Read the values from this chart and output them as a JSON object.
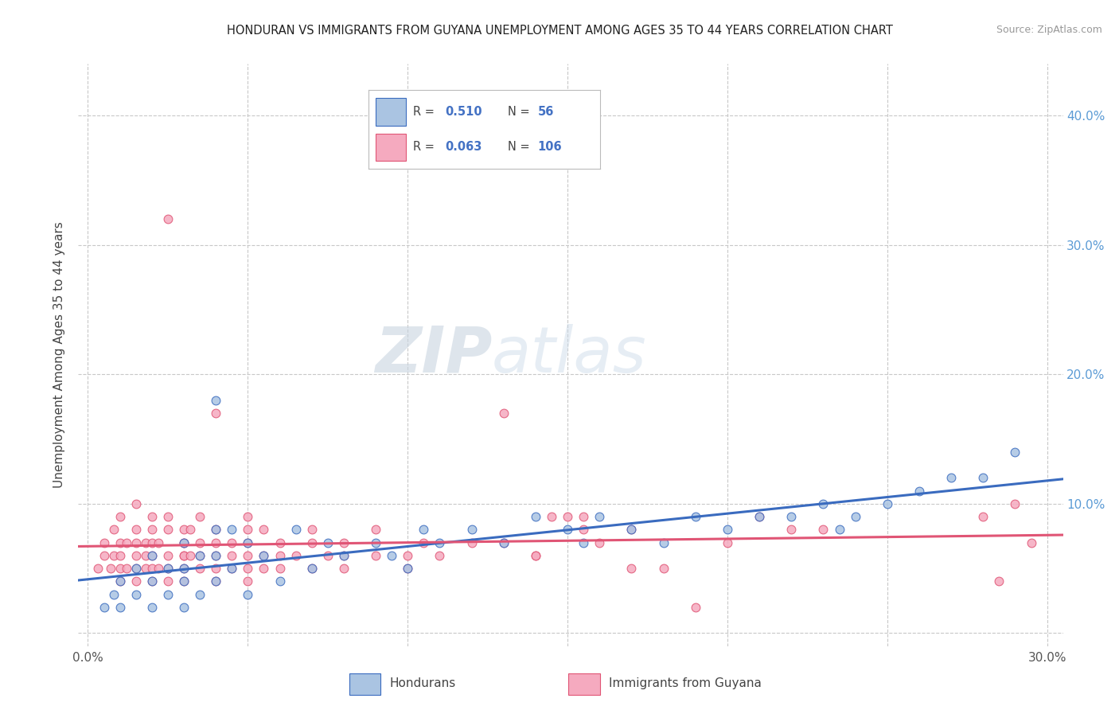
{
  "title": "HONDURAN VS IMMIGRANTS FROM GUYANA UNEMPLOYMENT AMONG AGES 35 TO 44 YEARS CORRELATION CHART",
  "source": "Source: ZipAtlas.com",
  "ylabel": "Unemployment Among Ages 35 to 44 years",
  "y_ticks_right": [
    0.0,
    0.1,
    0.2,
    0.3,
    0.4
  ],
  "y_tick_labels_right": [
    "",
    "10.0%",
    "20.0%",
    "30.0%",
    "40.0%"
  ],
  "xlim": [
    -0.003,
    0.305
  ],
  "ylim": [
    -0.01,
    0.44
  ],
  "blue_color": "#aac4e2",
  "pink_color": "#f5aabf",
  "blue_line_color": "#3a6bbf",
  "pink_line_color": "#e05575",
  "legend_R_blue": "0.510",
  "legend_N_blue": "56",
  "legend_R_pink": "0.063",
  "legend_N_pink": "106",
  "blue_scatter_x": [
    0.005,
    0.008,
    0.01,
    0.01,
    0.015,
    0.015,
    0.02,
    0.02,
    0.02,
    0.025,
    0.025,
    0.03,
    0.03,
    0.03,
    0.03,
    0.035,
    0.035,
    0.04,
    0.04,
    0.04,
    0.04,
    0.045,
    0.045,
    0.05,
    0.05,
    0.055,
    0.06,
    0.065,
    0.07,
    0.075,
    0.08,
    0.09,
    0.095,
    0.1,
    0.105,
    0.11,
    0.12,
    0.13,
    0.14,
    0.15,
    0.155,
    0.16,
    0.17,
    0.18,
    0.19,
    0.2,
    0.21,
    0.22,
    0.23,
    0.235,
    0.24,
    0.25,
    0.26,
    0.27,
    0.28,
    0.29
  ],
  "blue_scatter_y": [
    0.02,
    0.03,
    0.02,
    0.04,
    0.03,
    0.05,
    0.02,
    0.04,
    0.06,
    0.03,
    0.05,
    0.02,
    0.04,
    0.05,
    0.07,
    0.03,
    0.06,
    0.04,
    0.06,
    0.08,
    0.18,
    0.05,
    0.08,
    0.03,
    0.07,
    0.06,
    0.04,
    0.08,
    0.05,
    0.07,
    0.06,
    0.07,
    0.06,
    0.05,
    0.08,
    0.07,
    0.08,
    0.07,
    0.09,
    0.08,
    0.07,
    0.09,
    0.08,
    0.07,
    0.09,
    0.08,
    0.09,
    0.09,
    0.1,
    0.08,
    0.09,
    0.1,
    0.11,
    0.12,
    0.12,
    0.14
  ],
  "pink_scatter_x": [
    0.003,
    0.005,
    0.005,
    0.007,
    0.008,
    0.008,
    0.01,
    0.01,
    0.01,
    0.01,
    0.01,
    0.012,
    0.012,
    0.015,
    0.015,
    0.015,
    0.015,
    0.015,
    0.015,
    0.018,
    0.018,
    0.018,
    0.02,
    0.02,
    0.02,
    0.02,
    0.02,
    0.02,
    0.022,
    0.022,
    0.025,
    0.025,
    0.025,
    0.025,
    0.025,
    0.03,
    0.03,
    0.03,
    0.03,
    0.03,
    0.03,
    0.03,
    0.032,
    0.032,
    0.035,
    0.035,
    0.035,
    0.035,
    0.04,
    0.04,
    0.04,
    0.04,
    0.04,
    0.04,
    0.045,
    0.045,
    0.045,
    0.05,
    0.05,
    0.05,
    0.05,
    0.05,
    0.05,
    0.055,
    0.055,
    0.055,
    0.06,
    0.06,
    0.06,
    0.065,
    0.07,
    0.07,
    0.07,
    0.075,
    0.08,
    0.08,
    0.08,
    0.09,
    0.09,
    0.1,
    0.1,
    0.105,
    0.11,
    0.12,
    0.13,
    0.14,
    0.145,
    0.155,
    0.16,
    0.17,
    0.18,
    0.19,
    0.2,
    0.21,
    0.22,
    0.23,
    0.025,
    0.13,
    0.15,
    0.155,
    0.17,
    0.29,
    0.285,
    0.295,
    0.14,
    0.28
  ],
  "pink_scatter_y": [
    0.05,
    0.06,
    0.07,
    0.05,
    0.06,
    0.08,
    0.04,
    0.05,
    0.06,
    0.07,
    0.09,
    0.05,
    0.07,
    0.04,
    0.05,
    0.06,
    0.07,
    0.08,
    0.1,
    0.05,
    0.06,
    0.07,
    0.04,
    0.05,
    0.06,
    0.07,
    0.08,
    0.09,
    0.05,
    0.07,
    0.04,
    0.05,
    0.06,
    0.08,
    0.09,
    0.04,
    0.05,
    0.06,
    0.06,
    0.07,
    0.07,
    0.08,
    0.06,
    0.08,
    0.05,
    0.06,
    0.07,
    0.09,
    0.04,
    0.05,
    0.06,
    0.07,
    0.08,
    0.17,
    0.05,
    0.06,
    0.07,
    0.04,
    0.05,
    0.06,
    0.07,
    0.08,
    0.09,
    0.05,
    0.06,
    0.08,
    0.05,
    0.06,
    0.07,
    0.06,
    0.05,
    0.07,
    0.08,
    0.06,
    0.05,
    0.06,
    0.07,
    0.06,
    0.08,
    0.05,
    0.06,
    0.07,
    0.06,
    0.07,
    0.07,
    0.06,
    0.09,
    0.08,
    0.07,
    0.08,
    0.05,
    0.02,
    0.07,
    0.09,
    0.08,
    0.08,
    0.32,
    0.17,
    0.09,
    0.09,
    0.05,
    0.1,
    0.04,
    0.07,
    0.06,
    0.09
  ]
}
